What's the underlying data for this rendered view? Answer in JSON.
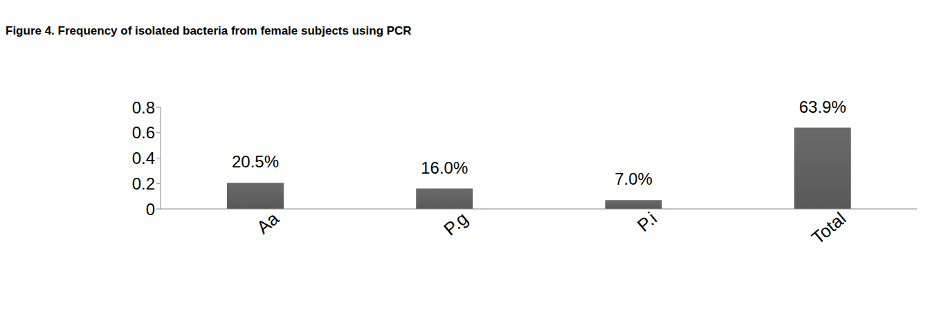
{
  "chart_data": {
    "type": "bar",
    "title": "Figure 4. Frequency of isolated bacteria from female subjects using PCR",
    "categories": [
      "Aa",
      "P.g",
      "P.i",
      "Total"
    ],
    "values": [
      0.205,
      0.16,
      0.07,
      0.639
    ],
    "value_labels": [
      "20.5%",
      "16.0%",
      "7.0%",
      "63.9%"
    ],
    "data_labels": true,
    "color": "#595959",
    "ylim": [
      0,
      0.8
    ],
    "yticks": [
      0,
      0.2,
      0.4,
      0.6,
      0.8
    ],
    "grid": false
  }
}
